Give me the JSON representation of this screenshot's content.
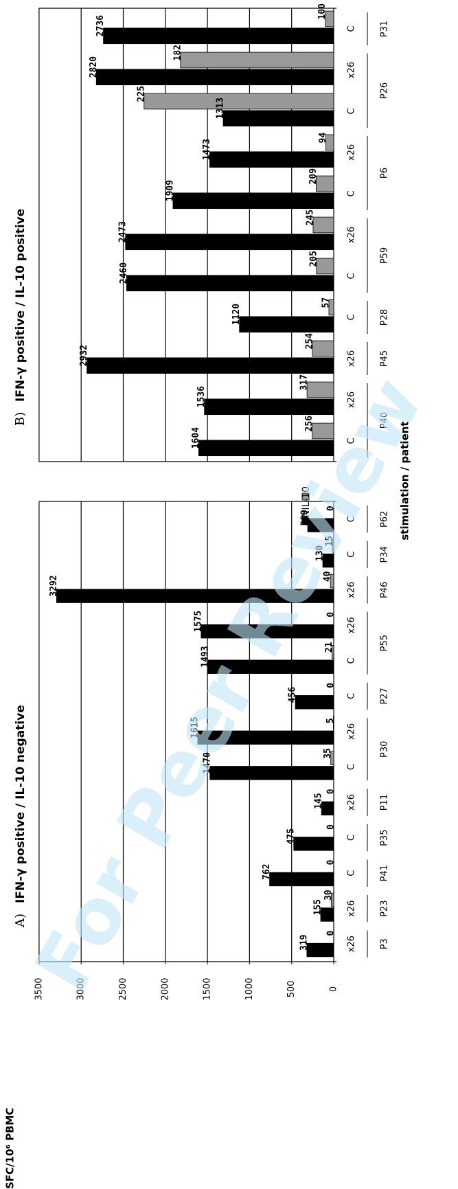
{
  "y_axis_title": "SFC/10⁶ PBMC",
  "x_axis_title": "stimulation / patient",
  "watermark": "For Peer Review",
  "colors": {
    "ifn": "#000000",
    "il10": "#999999",
    "watermark": "#bfe6f7"
  },
  "chart_data": [
    {
      "type": "bar",
      "panel": "A)",
      "title": "IFN-γ positive / IL-10 negative",
      "ylabel": "SFC/10⁶ PBMC",
      "xlabel": "stimulation / patient",
      "ylim": [
        0,
        3500
      ],
      "yticks": [
        "0",
        "500",
        "1000",
        "1500",
        "2000",
        "2500",
        "3000",
        "3500"
      ],
      "grid": true,
      "legend": [
        "IFN",
        "IL-10"
      ],
      "legend_position": "top-right",
      "categories": [
        "x26",
        "x26",
        "C",
        "C",
        "x26",
        "C",
        "x26",
        "C",
        "C",
        "x26",
        "x26",
        "C",
        "C"
      ],
      "patients": [
        {
          "label": "P3",
          "start": 0,
          "end": 0
        },
        {
          "label": "P23",
          "start": 1,
          "end": 1
        },
        {
          "label": "P41",
          "start": 2,
          "end": 2
        },
        {
          "label": "P35",
          "start": 3,
          "end": 3
        },
        {
          "label": "P11",
          "start": 4,
          "end": 4
        },
        {
          "label": "P30",
          "start": 5,
          "end": 6
        },
        {
          "label": "P27",
          "start": 7,
          "end": 7
        },
        {
          "label": "P55",
          "start": 8,
          "end": 9
        },
        {
          "label": "P46",
          "start": 10,
          "end": 10
        },
        {
          "label": "P34",
          "start": 11,
          "end": 11
        },
        {
          "label": "P62",
          "start": 12,
          "end": 12
        }
      ],
      "series": [
        {
          "name": "IFN",
          "values": [
            319,
            155,
            762,
            475,
            145,
            1470,
            1615,
            456,
            1493,
            1575,
            3292,
            130,
            309
          ]
        },
        {
          "name": "IL-10",
          "values": [
            0,
            30,
            0,
            0,
            0,
            35,
            5,
            0,
            21,
            0,
            40,
            15,
            0
          ]
        }
      ]
    },
    {
      "type": "bar",
      "panel": "B)",
      "title": "IFN-γ positive / IL-10 positive",
      "xlabel": "stimulation / patient",
      "ylim": [
        0,
        3500
      ],
      "grid": true,
      "categories": [
        "C",
        "x26",
        "x26",
        "C",
        "C",
        "x26",
        "C",
        "x26",
        "C",
        "x26",
        "C"
      ],
      "patients": [
        {
          "label": "P40",
          "start": 0,
          "end": 1
        },
        {
          "label": "P45",
          "start": 2,
          "end": 2
        },
        {
          "label": "P28",
          "start": 3,
          "end": 3
        },
        {
          "label": "P59",
          "start": 4,
          "end": 5
        },
        {
          "label": "P6",
          "start": 6,
          "end": 7
        },
        {
          "label": "P26",
          "start": 8,
          "end": 9
        },
        {
          "label": "P31",
          "start": 10,
          "end": 10
        }
      ],
      "series": [
        {
          "name": "IFN",
          "values": [
            1604,
            1536,
            2932,
            1120,
            2460,
            2473,
            1909,
            1473,
            1313,
            2820,
            2736
          ]
        },
        {
          "name": "IL-10",
          "values": [
            256,
            317,
            254,
            57,
            205,
            245,
            209,
            94,
            2253,
            1820,
            100
          ]
        }
      ]
    }
  ]
}
